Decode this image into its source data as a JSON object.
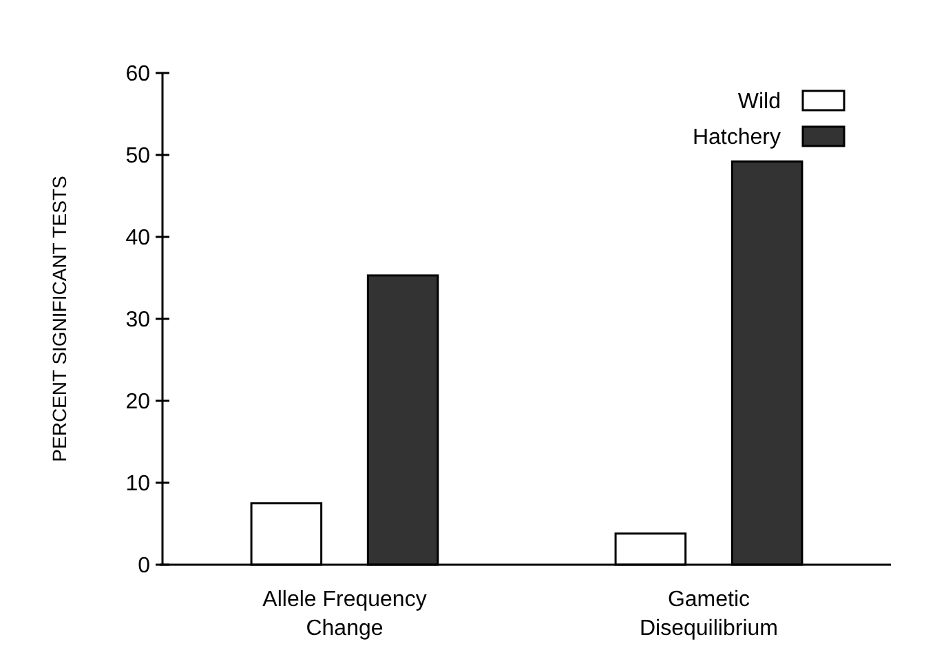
{
  "chart_data": {
    "type": "bar",
    "ylabel": "PERCENT SIGNIFICANT TESTS",
    "categories": [
      "Allele Frequency\nChange",
      "Gametic\nDisequilibrium"
    ],
    "series": [
      {
        "name": "Wild",
        "color": "#ffffff",
        "values": [
          7.5,
          3.8
        ]
      },
      {
        "name": "Hatchery",
        "color": "#333333",
        "values": [
          35.3,
          49.2
        ]
      }
    ],
    "ylim": [
      0,
      60
    ],
    "yticks": [
      0,
      10,
      20,
      30,
      40,
      50,
      60
    ],
    "legend": "top right",
    "grid": false
  }
}
